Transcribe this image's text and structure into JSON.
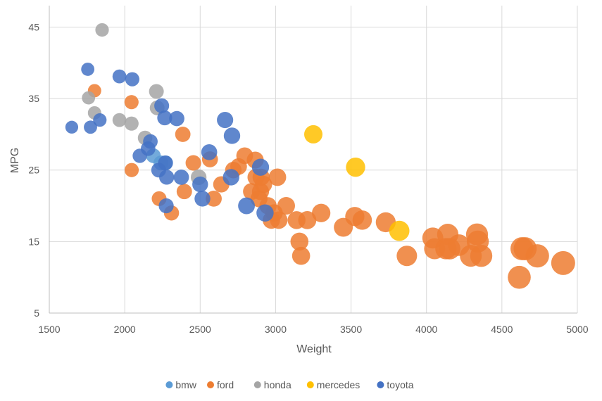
{
  "chart_data": {
    "type": "scatter",
    "variant": "bubble",
    "title": "",
    "xlabel": "Weight",
    "ylabel": "MPG",
    "xlim": [
      1500,
      5000
    ],
    "ylim": [
      5,
      48
    ],
    "xticks": [
      1500,
      2000,
      2500,
      3000,
      3500,
      4000,
      4500,
      5000
    ],
    "yticks": [
      5,
      15,
      25,
      35,
      45
    ],
    "xtick_labels": [
      "1500",
      "2000",
      "2500",
      "3000",
      "3500",
      "4000",
      "4500",
      "5000"
    ],
    "ytick_labels": [
      "5",
      "15",
      "25",
      "35",
      "45"
    ],
    "grid": true,
    "legend_position": "bottom",
    "series": [
      {
        "name": "bmw",
        "color": "#5B9BD5",
        "points": [
          [
            2240,
            26.0
          ],
          [
            2270,
            26.0
          ],
          [
            2190,
            27.0
          ]
        ]
      },
      {
        "name": "ford",
        "color": "#ED7D31",
        "points": [
          [
            1800,
            36.1
          ],
          [
            2045,
            34.5
          ],
          [
            2046,
            25.0
          ],
          [
            2228,
            21.0
          ],
          [
            2310,
            19.0
          ],
          [
            2385,
            30.0
          ],
          [
            2395,
            22.0
          ],
          [
            2455,
            26.0
          ],
          [
            2565,
            26.5
          ],
          [
            2590,
            21.0
          ],
          [
            2640,
            23.0
          ],
          [
            2720,
            25.0
          ],
          [
            2755,
            25.5
          ],
          [
            2795,
            27.0
          ],
          [
            2840,
            22.0
          ],
          [
            2865,
            26.4
          ],
          [
            2870,
            24.0
          ],
          [
            2890,
            21.0
          ],
          [
            2900,
            22.0
          ],
          [
            2904,
            24.0
          ],
          [
            2920,
            23.0
          ],
          [
            2950,
            20.0
          ],
          [
            2972,
            18.0
          ],
          [
            2990,
            19.0
          ],
          [
            3012,
            24.0
          ],
          [
            3021,
            18.0
          ],
          [
            3070,
            20.0
          ],
          [
            3139,
            18.0
          ],
          [
            3158,
            15.0
          ],
          [
            3169,
            13.0
          ],
          [
            3210,
            18.0
          ],
          [
            3302,
            19.0
          ],
          [
            3449,
            17.0
          ],
          [
            3525,
            18.5
          ],
          [
            3574,
            18.0
          ],
          [
            3730,
            17.7
          ],
          [
            3870,
            13.0
          ],
          [
            4042,
            15.5
          ],
          [
            4054,
            14.0
          ],
          [
            4141,
            16.0
          ],
          [
            4129,
            14.0
          ],
          [
            4154,
            14.0
          ],
          [
            4215,
            14.5
          ],
          [
            4294,
            13.0
          ],
          [
            4335,
            16.0
          ],
          [
            4340,
            15.0
          ],
          [
            4363,
            13.0
          ],
          [
            4615,
            10.0
          ],
          [
            4633,
            14.0
          ],
          [
            4654,
            14.0
          ],
          [
            4735,
            13.0
          ],
          [
            4906,
            12.0
          ]
        ]
      },
      {
        "name": "honda",
        "color": "#A5A5A5",
        "points": [
          [
            1850,
            44.6
          ],
          [
            1760,
            35.1
          ],
          [
            1800,
            33.0
          ],
          [
            1965,
            32.0
          ],
          [
            2045,
            31.5
          ],
          [
            2135,
            29.5
          ],
          [
            2210,
            36.0
          ],
          [
            2215,
            33.7
          ],
          [
            2490,
            24.0
          ]
        ]
      },
      {
        "name": "mercedes",
        "color": "#FFC000",
        "points": [
          [
            3250,
            30.0
          ],
          [
            3530,
            25.4
          ],
          [
            3820,
            16.5
          ]
        ]
      },
      {
        "name": "toyota",
        "color": "#4472C4",
        "points": [
          [
            1649,
            31.0
          ],
          [
            1755,
            39.1
          ],
          [
            1773,
            31.0
          ],
          [
            1835,
            32.0
          ],
          [
            1965,
            38.1
          ],
          [
            2050,
            37.7
          ],
          [
            2100,
            27.0
          ],
          [
            2155,
            28.0
          ],
          [
            2170,
            29.0
          ],
          [
            2225,
            25.0
          ],
          [
            2245,
            34.0
          ],
          [
            2265,
            32.3
          ],
          [
            2270,
            26.0
          ],
          [
            2275,
            20.0
          ],
          [
            2278,
            24.0
          ],
          [
            2345,
            32.2
          ],
          [
            2375,
            24.0
          ],
          [
            2500,
            23.0
          ],
          [
            2515,
            21.0
          ],
          [
            2560,
            27.5
          ],
          [
            2665,
            32.0
          ],
          [
            2705,
            24.0
          ],
          [
            2711,
            29.8
          ],
          [
            2807,
            20.0
          ],
          [
            2900,
            25.4
          ],
          [
            2930,
            19.0
          ]
        ]
      }
    ]
  }
}
